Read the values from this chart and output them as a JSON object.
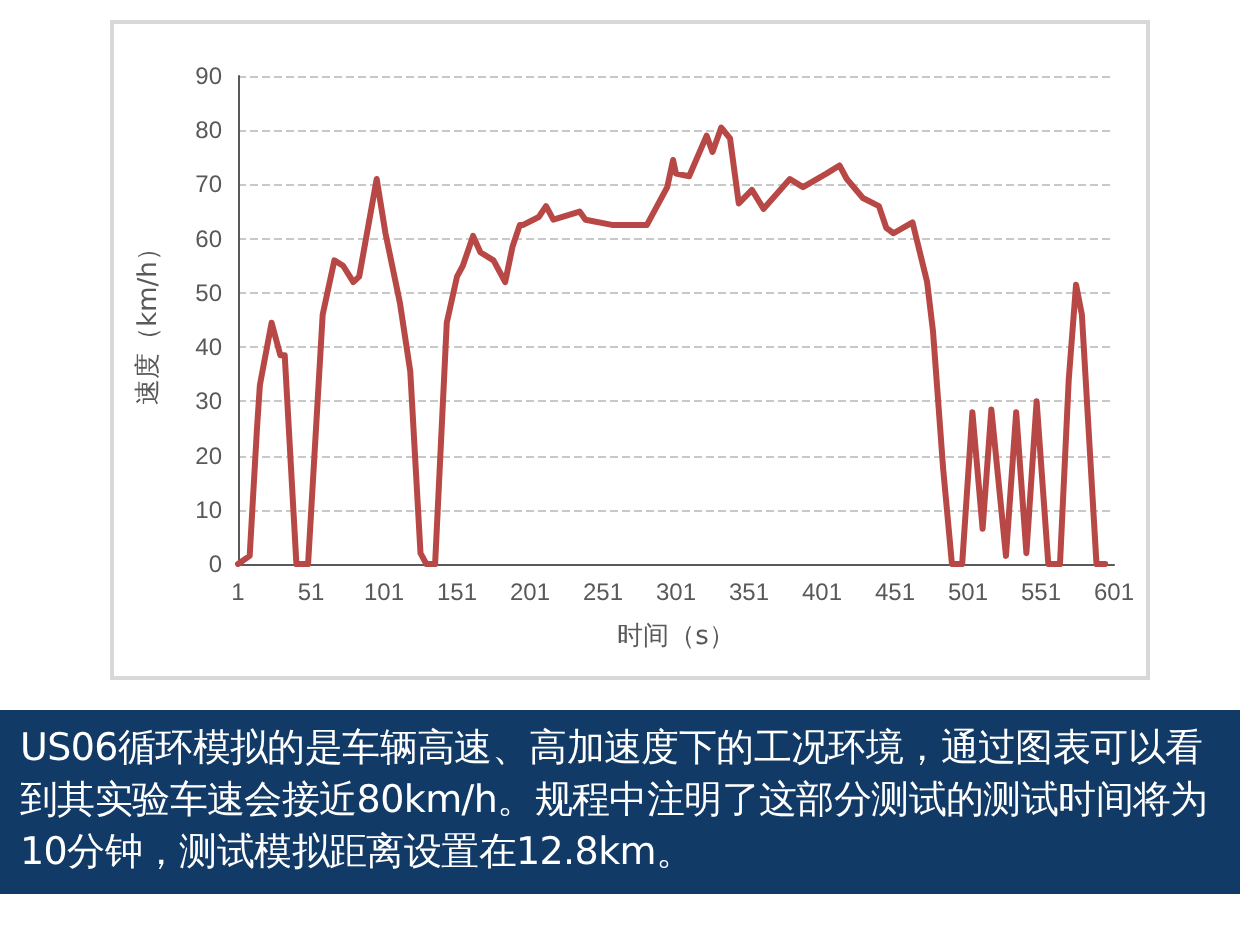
{
  "chart_data": {
    "type": "line",
    "xlabel": "时间（s）",
    "ylabel": "速度（km/h）",
    "x": [
      1,
      9,
      14,
      16,
      24,
      30,
      33,
      41,
      49,
      59,
      67,
      73,
      80,
      84,
      96,
      102,
      112,
      119,
      126,
      130,
      136,
      144,
      151,
      155,
      162,
      167,
      176,
      184,
      189,
      194,
      196,
      207,
      212,
      217,
      235,
      239,
      258,
      267,
      281,
      295,
      299,
      301,
      310,
      322,
      326,
      332,
      338,
      344,
      353,
      361,
      379,
      388,
      404,
      413,
      418,
      429,
      440,
      445,
      450,
      463,
      473,
      477,
      484,
      490,
      497,
      504,
      511,
      517,
      527,
      534,
      541,
      548,
      556,
      564,
      570,
      575,
      579,
      589,
      595
    ],
    "series": [
      {
        "color": "#b84846",
        "values": [
          0,
          1.5,
          25,
          33,
          44.5,
          38.5,
          38.5,
          0,
          0,
          46,
          56,
          55,
          52,
          53,
          71,
          61,
          48,
          35.5,
          2,
          0,
          0,
          44.5,
          53,
          55,
          60.5,
          57.5,
          56,
          52,
          58.5,
          62.5,
          62.5,
          64,
          66,
          63.5,
          65,
          63.5,
          62.5,
          62.5,
          62.5,
          69.5,
          74.5,
          72,
          71.5,
          79,
          76,
          80.5,
          78.5,
          66.5,
          69,
          65.5,
          71,
          69.5,
          72,
          73.5,
          71,
          67.5,
          66,
          62,
          61,
          63,
          52,
          43,
          17.5,
          0,
          0,
          28,
          6.5,
          28.5,
          1.5,
          28,
          2,
          30,
          0,
          0,
          34,
          51.5,
          46,
          0,
          0
        ]
      }
    ],
    "xlim": [
      1,
      601
    ],
    "xticks": [
      1,
      51,
      101,
      151,
      201,
      251,
      301,
      351,
      401,
      451,
      501,
      551,
      601
    ],
    "ylim": [
      0,
      90
    ],
    "yticks": [
      0,
      10,
      20,
      30,
      40,
      50,
      60,
      70,
      80,
      90
    ],
    "grid": "y",
    "marker": "none",
    "line_style": "solid",
    "annotations": [
      "US06循环模拟的是车辆高速、高加速度下的工况环境，通过图表可以看到其实验车速会接近80km/h。规程中注明了这部分测试的测试时间将为10分钟，测试模拟距离设置在12.8km。"
    ]
  }
}
